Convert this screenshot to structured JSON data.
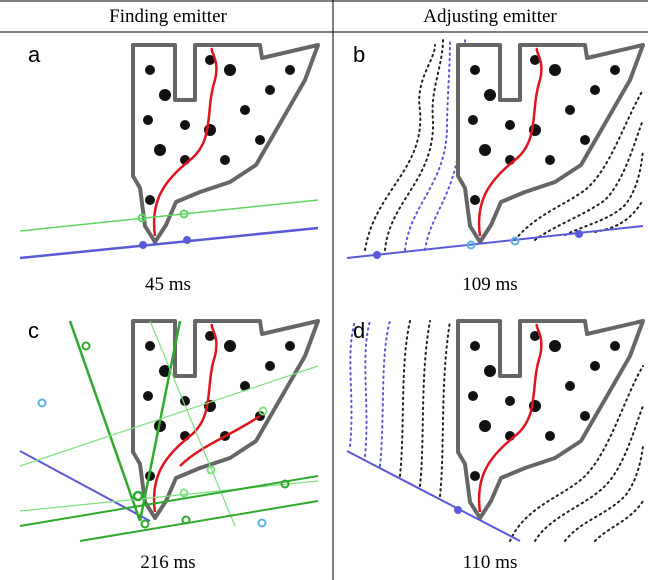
{
  "headers": [
    "Finding emitter",
    "Adjusting emitter"
  ],
  "panels": [
    {
      "label": "a",
      "time": "45 ms"
    },
    {
      "label": "b",
      "time": "109 ms"
    },
    {
      "label": "c",
      "time": "216 ms"
    },
    {
      "label": "d",
      "time": "110 ms"
    }
  ]
}
